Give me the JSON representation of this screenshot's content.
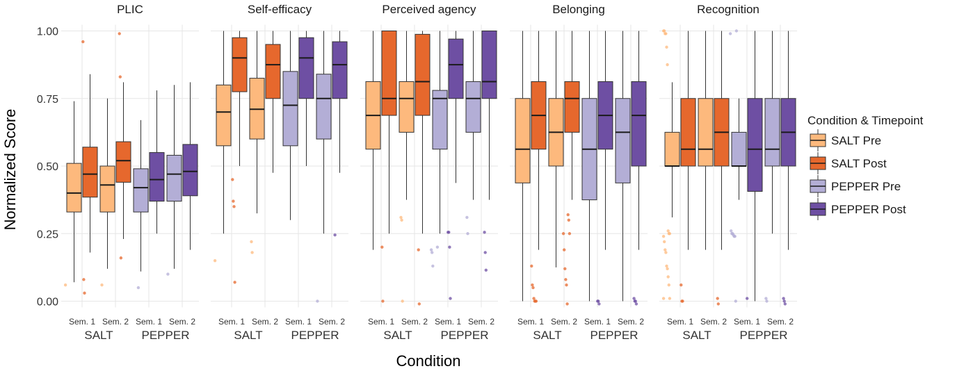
{
  "chart_data": {
    "type": "boxplot",
    "ylabel": "Normalized Score",
    "xlabel": "Condition",
    "ylim": [
      0,
      1
    ],
    "yticks": [
      0,
      0.25,
      0.5,
      0.75,
      1.0
    ],
    "ytick_labels": [
      "0.00",
      "0.25",
      "0.50",
      "0.75",
      "1.00"
    ],
    "groups": [
      "SALT",
      "PEPPER"
    ],
    "semesters": [
      "Sem. 1",
      "Sem. 2"
    ],
    "grid": true,
    "legend": {
      "title": "Condition & Timepoint",
      "placement": "right",
      "items": [
        {
          "label": "SALT Pre",
          "fill": "#fdb97d",
          "point": "#fdb97d"
        },
        {
          "label": "SALT Post",
          "fill": "#e6682d",
          "point": "#e6682d"
        },
        {
          "label": "PEPPER Pre",
          "fill": "#b3aed6",
          "point": "#b3aed6"
        },
        {
          "label": "PEPPER Post",
          "fill": "#6e4fa3",
          "point": "#6e4fa3"
        }
      ]
    },
    "panels": [
      {
        "title": "PLIC",
        "boxes": [
          {
            "series": 0,
            "slot": 0,
            "min": 0.07,
            "q1": 0.33,
            "med": 0.4,
            "q3": 0.51,
            "max": 0.74,
            "outliers": [
              0.06
            ]
          },
          {
            "series": 1,
            "slot": 0,
            "min": 0.18,
            "q1": 0.385,
            "med": 0.47,
            "q3": 0.57,
            "max": 0.84,
            "outliers": [
              0.96,
              0.08,
              0.03
            ]
          },
          {
            "series": 0,
            "slot": 1,
            "min": 0.12,
            "q1": 0.33,
            "med": 0.43,
            "q3": 0.5,
            "max": 0.75,
            "outliers": [
              0.06
            ]
          },
          {
            "series": 1,
            "slot": 1,
            "min": 0.23,
            "q1": 0.44,
            "med": 0.52,
            "q3": 0.59,
            "max": 0.81,
            "outliers": [
              0.99,
              0.83,
              0.16
            ]
          },
          {
            "series": 2,
            "slot": 2,
            "min": 0.11,
            "q1": 0.33,
            "med": 0.42,
            "q3": 0.49,
            "max": 0.67,
            "outliers": [
              0.05
            ]
          },
          {
            "series": 3,
            "slot": 2,
            "min": 0.25,
            "q1": 0.37,
            "med": 0.45,
            "q3": 0.55,
            "max": 0.78,
            "outliers": []
          },
          {
            "series": 2,
            "slot": 3,
            "min": 0.12,
            "q1": 0.37,
            "med": 0.47,
            "q3": 0.54,
            "max": 0.8,
            "outliers": [
              0.1
            ]
          },
          {
            "series": 3,
            "slot": 3,
            "min": 0.19,
            "q1": 0.39,
            "med": 0.48,
            "q3": 0.58,
            "max": 0.81,
            "outliers": []
          }
        ]
      },
      {
        "title": "Self-efficacy",
        "boxes": [
          {
            "series": 0,
            "slot": 0,
            "min": 0.25,
            "q1": 0.575,
            "med": 0.7,
            "q3": 0.8,
            "max": 1.0,
            "outliers": [
              0.15
            ]
          },
          {
            "series": 1,
            "slot": 0,
            "min": 0.5,
            "q1": 0.775,
            "med": 0.9,
            "q3": 0.975,
            "max": 1.0,
            "outliers": [
              0.45,
              0.37,
              0.35,
              0.07
            ]
          },
          {
            "series": 0,
            "slot": 1,
            "min": 0.325,
            "q1": 0.6,
            "med": 0.71,
            "q3": 0.825,
            "max": 1.0,
            "outliers": [
              0.22,
              0.18
            ]
          },
          {
            "series": 1,
            "slot": 1,
            "min": 0.475,
            "q1": 0.75,
            "med": 0.875,
            "q3": 0.95,
            "max": 1.0,
            "outliers": []
          },
          {
            "series": 2,
            "slot": 2,
            "min": 0.3,
            "q1": 0.575,
            "med": 0.725,
            "q3": 0.85,
            "max": 1.0,
            "outliers": []
          },
          {
            "series": 3,
            "slot": 2,
            "min": 0.5,
            "q1": 0.75,
            "med": 0.9,
            "q3": 0.975,
            "max": 1.0,
            "outliers": []
          },
          {
            "series": 2,
            "slot": 3,
            "min": 0.25,
            "q1": 0.6,
            "med": 0.75,
            "q3": 0.84,
            "max": 1.0,
            "outliers": [
              0.0
            ]
          },
          {
            "series": 3,
            "slot": 3,
            "min": 0.475,
            "q1": 0.75,
            "med": 0.875,
            "q3": 0.96,
            "max": 1.0,
            "outliers": [
              0.245
            ]
          }
        ]
      },
      {
        "title": "Perceived agency",
        "boxes": [
          {
            "series": 0,
            "slot": 0,
            "min": 0.19,
            "q1": 0.5625,
            "med": 0.6875,
            "q3": 0.8125,
            "max": 1.0,
            "outliers": []
          },
          {
            "series": 1,
            "slot": 0,
            "min": 0.25,
            "q1": 0.6875,
            "med": 0.75,
            "q3": 1.0,
            "max": 1.0,
            "outliers": [
              0.2,
              0.0
            ]
          },
          {
            "series": 0,
            "slot": 1,
            "min": 0.375,
            "q1": 0.625,
            "med": 0.75,
            "q3": 0.8125,
            "max": 1.0,
            "outliers": [
              0.31,
              0.3,
              0.0
            ]
          },
          {
            "series": 1,
            "slot": 1,
            "min": 0.25,
            "q1": 0.6875,
            "med": 0.8125,
            "q3": 0.9875,
            "max": 1.0,
            "outliers": [
              0.19,
              -0.01
            ]
          },
          {
            "series": 2,
            "slot": 2,
            "min": 0.25,
            "q1": 0.5625,
            "med": 0.75,
            "q3": 0.78,
            "max": 1.0,
            "outliers": [
              0.2,
              0.19,
              0.18,
              0.13
            ]
          },
          {
            "series": 3,
            "slot": 2,
            "min": 0.4375,
            "q1": 0.75,
            "med": 0.875,
            "q3": 0.97,
            "max": 1.0,
            "outliers": [
              0.255,
              0.255,
              0.2,
              0.01
            ]
          },
          {
            "series": 2,
            "slot": 3,
            "min": 0.375,
            "q1": 0.625,
            "med": 0.75,
            "q3": 0.8125,
            "max": 1.0,
            "outliers": [
              0.31,
              0.25
            ]
          },
          {
            "series": 3,
            "slot": 3,
            "min": 0.375,
            "q1": 0.75,
            "med": 0.8125,
            "q3": 1.0,
            "max": 1.0,
            "outliers": [
              0.255,
              0.18,
              0.115
            ]
          }
        ]
      },
      {
        "title": "Belonging",
        "boxes": [
          {
            "series": 0,
            "slot": 0,
            "min": 0.0,
            "q1": 0.4375,
            "med": 0.5625,
            "q3": 0.75,
            "max": 1.0,
            "outliers": []
          },
          {
            "series": 1,
            "slot": 0,
            "min": 0.19,
            "q1": 0.5625,
            "med": 0.6875,
            "q3": 0.8125,
            "max": 1.0,
            "outliers": [
              0.13,
              0.06,
              0.05,
              0.01,
              0.0,
              0.0,
              0.0
            ]
          },
          {
            "series": 0,
            "slot": 1,
            "min": 0.125,
            "q1": 0.5,
            "med": 0.625,
            "q3": 0.75,
            "max": 1.0,
            "outliers": []
          },
          {
            "series": 1,
            "slot": 1,
            "min": 0.375,
            "q1": 0.625,
            "med": 0.75,
            "q3": 0.8125,
            "max": 1.0,
            "outliers": [
              0.32,
              0.3,
              0.25,
              0.25,
              0.19,
              0.12,
              0.08,
              0.06,
              -0.01
            ]
          },
          {
            "series": 2,
            "slot": 2,
            "min": 0.0,
            "q1": 0.375,
            "med": 0.5625,
            "q3": 0.75,
            "max": 1.0,
            "outliers": []
          },
          {
            "series": 3,
            "slot": 2,
            "min": 0.19,
            "q1": 0.5625,
            "med": 0.6875,
            "q3": 0.8125,
            "max": 1.0,
            "outliers": [
              0.0,
              0.0,
              -0.01
            ]
          },
          {
            "series": 2,
            "slot": 3,
            "min": 0.0,
            "q1": 0.4375,
            "med": 0.625,
            "q3": 0.75,
            "max": 1.0,
            "outliers": []
          },
          {
            "series": 3,
            "slot": 3,
            "min": 0.19,
            "q1": 0.5,
            "med": 0.6875,
            "q3": 0.8125,
            "max": 1.0,
            "outliers": [
              0.01,
              0.0,
              0.0,
              -0.01
            ]
          }
        ]
      },
      {
        "title": "Recognition",
        "boxes": [
          {
            "series": 0,
            "slot": 0,
            "min": 0.31,
            "q1": 0.5,
            "med": 0.5,
            "q3": 0.625,
            "max": 0.81,
            "outliers": [
              1.0,
              1.0,
              0.99,
              0.99,
              0.94,
              0.875,
              0.26,
              0.25,
              0.25,
              0.24,
              0.22,
              0.19,
              0.18,
              0.13,
              0.12,
              0.09,
              0.06,
              0.01,
              0.01
            ]
          },
          {
            "series": 1,
            "slot": 0,
            "min": 0.19,
            "q1": 0.5,
            "med": 0.5625,
            "q3": 0.75,
            "max": 1.0,
            "outliers": [
              0.06,
              0.0,
              0.0
            ]
          },
          {
            "series": 0,
            "slot": 1,
            "min": 0.19,
            "q1": 0.5,
            "med": 0.5625,
            "q3": 0.75,
            "max": 1.0,
            "outliers": []
          },
          {
            "series": 1,
            "slot": 1,
            "min": 0.19,
            "q1": 0.5,
            "med": 0.625,
            "q3": 0.75,
            "max": 1.0,
            "outliers": [
              0.01,
              -0.01
            ]
          },
          {
            "series": 2,
            "slot": 2,
            "min": 0.375,
            "q1": 0.5,
            "med": 0.5,
            "q3": 0.625,
            "max": 0.75,
            "outliers": [
              1.0,
              0.99,
              0.26,
              0.25,
              0.25,
              0.245,
              0.24,
              0.24,
              0.0
            ]
          },
          {
            "series": 3,
            "slot": 2,
            "min": 0.0,
            "q1": 0.4063,
            "med": 0.5625,
            "q3": 0.75,
            "max": 1.0,
            "outliers": [
              0.01
            ]
          },
          {
            "series": 2,
            "slot": 3,
            "min": 0.25,
            "q1": 0.5,
            "med": 0.5625,
            "q3": 0.75,
            "max": 1.0,
            "outliers": [
              0.01,
              0.0
            ]
          },
          {
            "series": 3,
            "slot": 3,
            "min": 0.19,
            "q1": 0.5,
            "med": 0.625,
            "q3": 0.75,
            "max": 1.0,
            "outliers": [
              0.01,
              0.0,
              -0.01
            ]
          }
        ]
      }
    ]
  }
}
